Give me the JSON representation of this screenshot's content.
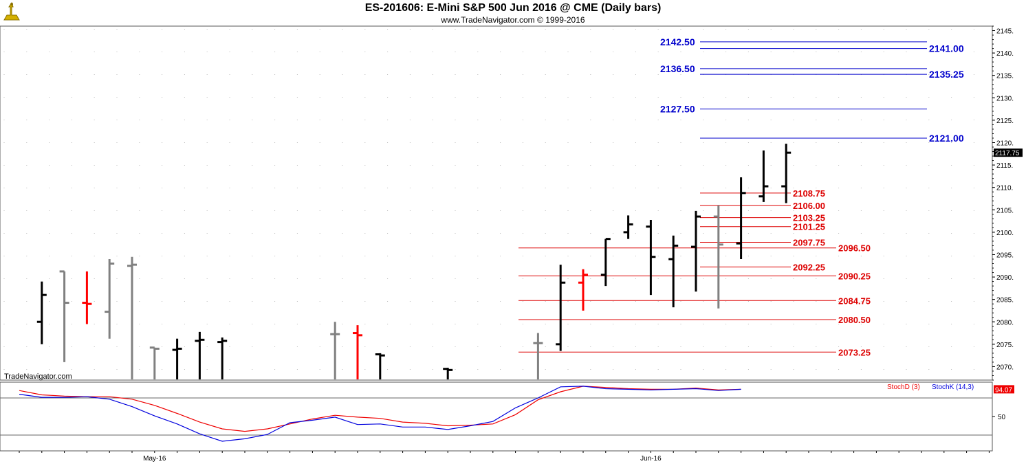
{
  "header": {
    "title": "ES-201606:  E-Mini S&P 500 Jun 2016 @ CME  (Daily bars)",
    "subtitle": "www.TradeNavigator.com © 1999-2016"
  },
  "watermark": "TradeNavigator.com",
  "colors": {
    "up_bar": "#000000",
    "flat_bar": "#808080",
    "down_bar": "#ff0000",
    "resistance": "#0000cc",
    "support": "#dd0000",
    "stoch_d": "#ee0000",
    "stoch_k": "#0000dd"
  },
  "indicator_legend": {
    "stoch_d": "StochD (3)",
    "stoch_k": "StochK (14,3)"
  },
  "chart_data": [
    {
      "type": "ohlc",
      "ylim": [
        2067,
        2146
      ],
      "yticks": [
        2070,
        2075,
        2080,
        2085,
        2090,
        2095,
        2100,
        2105,
        2110,
        2115,
        2120,
        2125,
        2130,
        2135,
        2140,
        2145
      ],
      "x_labels": [
        {
          "index": 6,
          "label": "May-16"
        },
        {
          "index": 28,
          "label": "Jun-16"
        }
      ],
      "last_price": "2117.75",
      "bars": [
        {
          "o": 2080.0,
          "h": 2089.0,
          "l": 2075.0,
          "c": 2086.0,
          "color": "up"
        },
        {
          "o": 2091.25,
          "h": 2091.25,
          "l": 2071.0,
          "c": 2084.25,
          "color": "flat"
        },
        {
          "o": 2084.25,
          "h": 2091.25,
          "l": 2079.5,
          "c": 2084.0,
          "color": "down"
        },
        {
          "o": 2082.25,
          "h": 2094.0,
          "l": 2076.25,
          "c": 2093.0,
          "color": "flat"
        },
        {
          "o": 2092.5,
          "h": 2094.5,
          "l": 2067.0,
          "c": 2092.75,
          "color": "flat"
        },
        {
          "o": 2074.25,
          "h": 2074.25,
          "l": 2067.0,
          "c": 2074.0,
          "color": "flat"
        },
        {
          "o": 2073.75,
          "h": 2076.25,
          "l": 2067.0,
          "c": 2074.0,
          "color": "up"
        },
        {
          "o": 2075.75,
          "h": 2077.75,
          "l": 2067.0,
          "c": 2076.0,
          "color": "up"
        },
        {
          "o": 2075.5,
          "h": 2076.5,
          "l": 2067.0,
          "c": 2075.75,
          "color": "up"
        },
        {
          "o": 2077.25,
          "h": 2080.0,
          "l": 2067.0,
          "c": 2077.25,
          "color": "flat"
        },
        {
          "o": 2077.5,
          "h": 2079.25,
          "l": 2067.0,
          "c": 2077.0,
          "color": "down"
        },
        {
          "o": 2072.75,
          "h": 2073.0,
          "l": 2067.0,
          "c": 2072.5,
          "color": "up"
        },
        {
          "o": 2069.5,
          "h": 2069.75,
          "l": 2067.0,
          "c": 2069.25,
          "color": "up"
        },
        {
          "o": 2075.25,
          "h": 2077.5,
          "l": 2067.0,
          "c": 2075.25,
          "color": "flat"
        },
        {
          "o": 2075.0,
          "h": 2092.75,
          "l": 2073.5,
          "c": 2088.75,
          "color": "up"
        },
        {
          "o": 2088.75,
          "h": 2091.75,
          "l": 2082.5,
          "c": 2090.5,
          "color": "down"
        },
        {
          "o": 2090.5,
          "h": 2098.5,
          "l": 2088.0,
          "c": 2098.5,
          "color": "up"
        },
        {
          "o": 2100.0,
          "h": 2103.75,
          "l": 2098.5,
          "c": 2101.75,
          "color": "up"
        },
        {
          "o": 2101.25,
          "h": 2102.75,
          "l": 2086.0,
          "c": 2094.5,
          "color": "up"
        },
        {
          "o": 2094.0,
          "h": 2099.25,
          "l": 2083.25,
          "c": 2097.0,
          "color": "up"
        },
        {
          "o": 2096.75,
          "h": 2104.75,
          "l": 2086.75,
          "c": 2103.5,
          "color": "up"
        },
        {
          "o": 2103.5,
          "h": 2106.0,
          "l": 2083.0,
          "c": 2097.25,
          "color": "flat"
        },
        {
          "o": 2097.5,
          "h": 2112.25,
          "l": 2094.0,
          "c": 2108.75,
          "color": "up"
        },
        {
          "o": 2108.0,
          "h": 2118.25,
          "l": 2106.75,
          "c": 2110.25,
          "color": "up"
        },
        {
          "o": 2110.25,
          "h": 2119.75,
          "l": 2106.5,
          "c": 2117.75,
          "color": "up"
        }
      ],
      "bar_slots": [
        1,
        2,
        3,
        4,
        5,
        6,
        7,
        8,
        9,
        14,
        15,
        16,
        19,
        23,
        24,
        25,
        26,
        27,
        28,
        29,
        30,
        31,
        32,
        33,
        34
      ],
      "levels_resistance": [
        {
          "value": 2142.5,
          "label": "2142.50",
          "side": "left"
        },
        {
          "value": 2141.0,
          "label": "2141.00",
          "side": "right"
        },
        {
          "value": 2136.5,
          "label": "2136.50",
          "side": "left"
        },
        {
          "value": 2135.25,
          "label": "2135.25",
          "side": "right"
        },
        {
          "value": 2127.5,
          "label": "2127.50",
          "side": "left"
        },
        {
          "value": 2121.0,
          "label": "2121.00",
          "side": "right"
        }
      ],
      "levels_support": [
        {
          "value": 2108.75,
          "label": "2108.75",
          "span": "short"
        },
        {
          "value": 2106.0,
          "label": "2106.00",
          "span": "short"
        },
        {
          "value": 2103.25,
          "label": "2103.25",
          "span": "short"
        },
        {
          "value": 2101.25,
          "label": "2101.25",
          "span": "short"
        },
        {
          "value": 2097.75,
          "label": "2097.75",
          "span": "short"
        },
        {
          "value": 2096.5,
          "label": "2096.50",
          "span": "long"
        },
        {
          "value": 2092.25,
          "label": "2092.25",
          "span": "short"
        },
        {
          "value": 2090.25,
          "label": "2090.25",
          "span": "long"
        },
        {
          "value": 2084.75,
          "label": "2084.75",
          "span": "long"
        },
        {
          "value": 2080.5,
          "label": "2080.50",
          "span": "long"
        },
        {
          "value": 2073.25,
          "label": "2073.25",
          "span": "long"
        }
      ]
    },
    {
      "type": "line",
      "ylim": [
        0,
        100
      ],
      "yticks": [
        50
      ],
      "hlines": [
        20,
        80
      ],
      "last_value": "94.07",
      "series": [
        {
          "name": "StochD (3)",
          "values": [
            92,
            85,
            83,
            82,
            82,
            78,
            68,
            55,
            41,
            30,
            26,
            30,
            38,
            46,
            52,
            49,
            47,
            41,
            39,
            35,
            36,
            38,
            53,
            77,
            90,
            99,
            97,
            95,
            94,
            94,
            96,
            93,
            94
          ]
        },
        {
          "name": "StochK (14,3)",
          "values": [
            86,
            81,
            81,
            82,
            78,
            66,
            51,
            38,
            22,
            10,
            14,
            21,
            40,
            44,
            49,
            37,
            38,
            33,
            33,
            29,
            35,
            42,
            64,
            80,
            98,
            99,
            95,
            94,
            93,
            94,
            95,
            92,
            94
          ]
        }
      ]
    }
  ]
}
